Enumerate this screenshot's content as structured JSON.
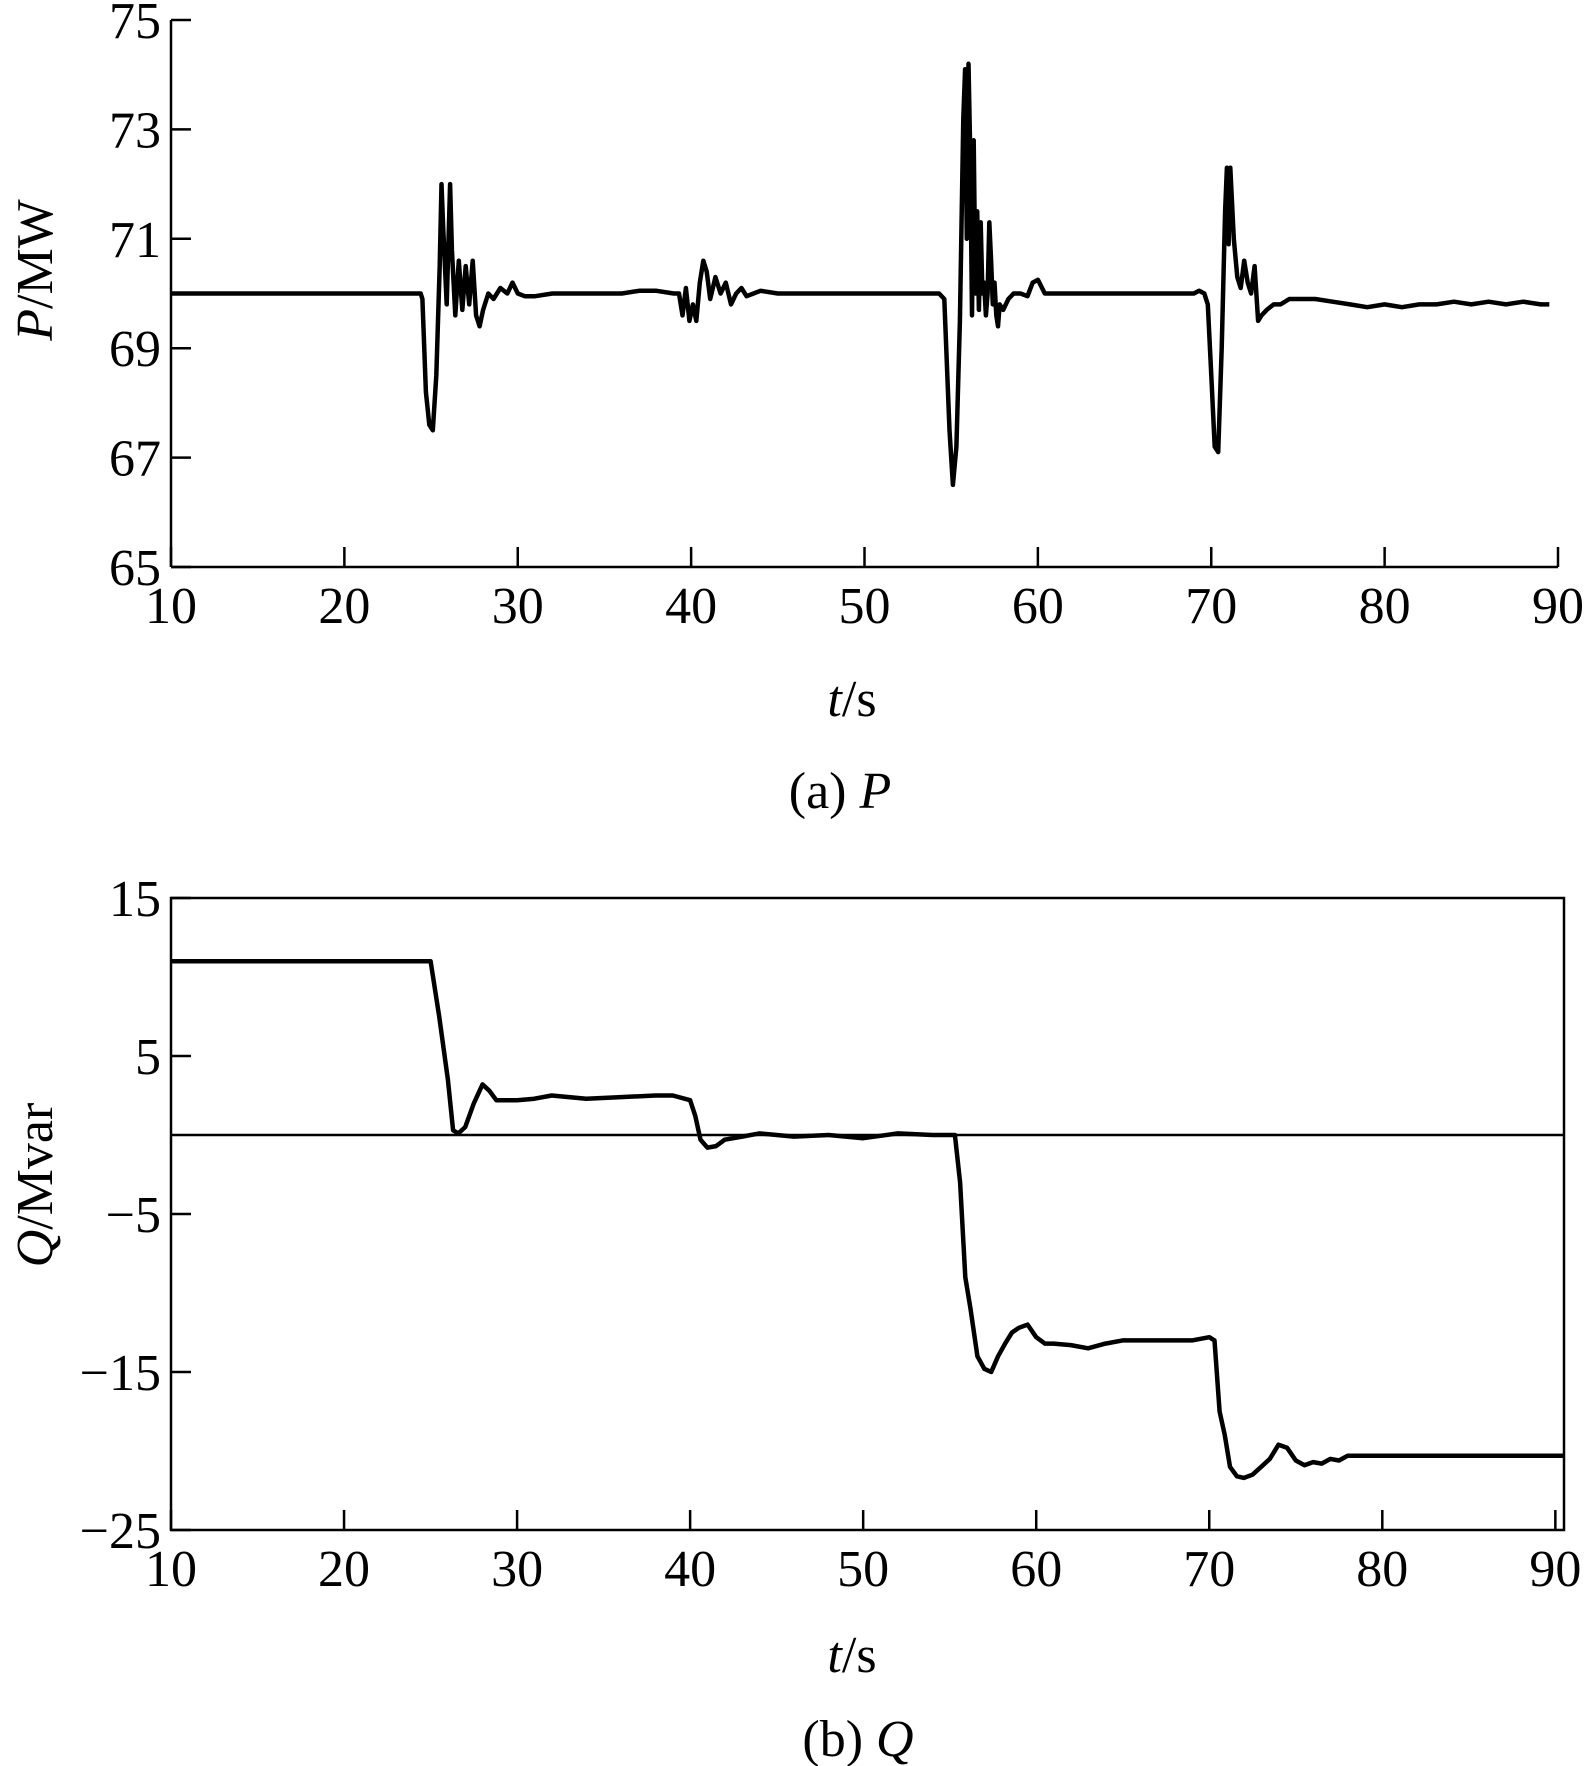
{
  "chart_data": [
    {
      "type": "line",
      "panel_caption": {
        "prefix": "(a) ",
        "symbol": "P"
      },
      "xlabel": {
        "symbol": "t",
        "unit": "/s"
      },
      "ylabel": {
        "symbol": "P",
        "unit": "/MW"
      },
      "xlim": [
        10,
        90
      ],
      "ylim": [
        65,
        75
      ],
      "xticks": [
        10,
        20,
        30,
        40,
        50,
        60,
        70,
        80,
        90
      ],
      "yticks": [
        65,
        67,
        69,
        71,
        73,
        75
      ],
      "ytick_labels": [
        "65",
        "67",
        "69",
        "71",
        "73",
        "75"
      ],
      "box": "left-bottom",
      "series": [
        {
          "color": "#000000",
          "x": [
            10,
            24.4,
            24.5,
            24.7,
            24.9,
            25.1,
            25.3,
            25.5,
            25.6,
            25.7,
            25.9,
            26.1,
            26.2,
            26.4,
            26.6,
            26.8,
            27.0,
            27.2,
            27.4,
            27.6,
            27.8,
            28.0,
            28.3,
            28.6,
            29.0,
            29.4,
            29.7,
            30.0,
            30.4,
            31.0,
            32.0,
            34.0,
            36.0,
            37.0,
            38.0,
            39.0,
            39.3,
            39.5,
            39.7,
            39.9,
            40.1,
            40.3,
            40.5,
            40.7,
            40.9,
            41.1,
            41.4,
            41.7,
            42.0,
            42.3,
            42.6,
            42.9,
            43.2,
            43.6,
            44.0,
            45.0,
            50.0,
            54.0,
            54.3,
            54.6,
            54.9,
            55.1,
            55.3,
            55.5,
            55.7,
            55.8,
            55.9,
            56.0,
            56.1,
            56.2,
            56.3,
            56.4,
            56.5,
            56.6,
            56.7,
            56.8,
            56.9,
            57.0,
            57.1,
            57.2,
            57.3,
            57.4,
            57.5,
            57.6,
            57.7,
            57.8,
            58.0,
            58.3,
            58.6,
            59.0,
            59.4,
            59.7,
            60.0,
            60.4,
            61.0,
            65.0,
            68.0,
            69.0,
            69.3,
            69.6,
            69.8,
            70.0,
            70.2,
            70.4,
            70.6,
            70.8,
            70.9,
            71.0,
            71.1,
            71.3,
            71.5,
            71.7,
            71.9,
            72.1,
            72.3,
            72.5,
            72.7,
            72.9,
            73.2,
            73.6,
            74.0,
            74.5,
            75.0,
            76.0,
            77.0,
            78.0,
            79.0,
            80.0,
            81.0,
            82.0,
            83.0,
            84.0,
            85.0,
            86.0,
            87.0,
            88.0,
            89.0,
            89.5
          ],
          "y": [
            70.0,
            70.0,
            69.9,
            68.2,
            67.6,
            67.5,
            68.5,
            70.5,
            72.0,
            71.2,
            69.8,
            72.0,
            70.8,
            69.6,
            70.6,
            69.7,
            70.5,
            69.8,
            70.6,
            69.6,
            69.4,
            69.7,
            70.0,
            69.9,
            70.1,
            70.0,
            70.2,
            70.0,
            69.95,
            69.95,
            70.0,
            70.0,
            70.0,
            70.05,
            70.05,
            70.0,
            70.0,
            69.6,
            70.1,
            69.5,
            69.8,
            69.5,
            70.2,
            70.6,
            70.4,
            69.9,
            70.3,
            70.0,
            70.2,
            69.8,
            70.0,
            70.1,
            69.95,
            70.0,
            70.05,
            70.0,
            70.0,
            70.0,
            70.0,
            69.9,
            67.5,
            66.5,
            67.2,
            69.5,
            73.2,
            74.1,
            71.0,
            74.2,
            72.5,
            69.6,
            72.8,
            70.0,
            71.5,
            69.7,
            71.3,
            70.0,
            70.2,
            69.6,
            70.0,
            71.3,
            70.6,
            69.8,
            70.2,
            69.6,
            69.4,
            69.8,
            69.7,
            69.9,
            70.0,
            70.0,
            69.95,
            70.2,
            70.25,
            70.0,
            70.0,
            70.0,
            70.0,
            70.0,
            70.05,
            70.0,
            69.8,
            68.5,
            67.2,
            67.1,
            69.0,
            71.5,
            72.3,
            70.9,
            72.3,
            71.0,
            70.3,
            70.1,
            70.6,
            70.2,
            70.0,
            70.5,
            69.5,
            69.6,
            69.7,
            69.8,
            69.8,
            69.9,
            69.9,
            69.9,
            69.85,
            69.8,
            69.75,
            69.8,
            69.75,
            69.8,
            69.8,
            69.85,
            69.8,
            69.85,
            69.8,
            69.85,
            69.8,
            69.8
          ]
        }
      ]
    },
    {
      "type": "line",
      "panel_caption": {
        "prefix": "(b) ",
        "symbol": "Q"
      },
      "xlabel": {
        "symbol": "t",
        "unit": "/s"
      },
      "ylabel": {
        "symbol": "Q",
        "unit": "/Mvar"
      },
      "xlim": [
        10,
        90.5
      ],
      "ylim": [
        -25,
        15
      ],
      "xticks": [
        10,
        20,
        30,
        40,
        50,
        60,
        70,
        80,
        90
      ],
      "yticks": [
        -25,
        -15,
        -5,
        5,
        15
      ],
      "ytick_labels": [
        "−25",
        "−15",
        "−5",
        "5",
        "15"
      ],
      "zero_line": true,
      "box": "full",
      "series": [
        {
          "color": "#000000",
          "x": [
            10,
            25.0,
            25.5,
            26.0,
            26.3,
            26.6,
            27.0,
            27.5,
            28.0,
            28.4,
            28.8,
            29.5,
            30.0,
            31.0,
            32.0,
            33.0,
            34.0,
            36.0,
            38.0,
            39.0,
            40.0,
            40.3,
            40.6,
            41.0,
            41.5,
            42.0,
            43.0,
            44.0,
            46.0,
            48.0,
            50.0,
            52.0,
            54.0,
            55.0,
            55.3,
            55.6,
            55.9,
            56.2,
            56.6,
            57.0,
            57.4,
            57.8,
            58.2,
            58.6,
            59.0,
            59.5,
            60.0,
            60.5,
            61.0,
            62.0,
            63.0,
            64.0,
            65.0,
            67.0,
            69.0,
            70.0,
            70.3,
            70.6,
            70.9,
            71.2,
            71.6,
            72.0,
            72.5,
            73.0,
            73.5,
            74.0,
            74.5,
            75.0,
            75.5,
            76.0,
            76.5,
            77.0,
            77.5,
            78.0,
            80.0,
            85.0,
            90.5
          ],
          "y": [
            11.0,
            11.0,
            7.5,
            3.5,
            0.3,
            0.1,
            0.5,
            2.0,
            3.2,
            2.8,
            2.2,
            2.2,
            2.2,
            2.3,
            2.5,
            2.4,
            2.3,
            2.4,
            2.5,
            2.5,
            2.2,
            1.2,
            -0.3,
            -0.8,
            -0.7,
            -0.3,
            -0.1,
            0.1,
            -0.1,
            0.0,
            -0.2,
            0.1,
            0.0,
            0.0,
            0.0,
            -3.0,
            -9.0,
            -11.0,
            -14.0,
            -14.8,
            -15.0,
            -14.0,
            -13.2,
            -12.5,
            -12.2,
            -12.0,
            -12.8,
            -13.2,
            -13.2,
            -13.3,
            -13.5,
            -13.2,
            -13.0,
            -13.0,
            -13.0,
            -12.8,
            -13.0,
            -17.5,
            -19.0,
            -21.0,
            -21.6,
            -21.7,
            -21.5,
            -21.0,
            -20.5,
            -19.6,
            -19.8,
            -20.6,
            -20.9,
            -20.7,
            -20.8,
            -20.5,
            -20.6,
            -20.3,
            -20.3,
            -20.3,
            -20.3
          ]
        }
      ]
    }
  ]
}
